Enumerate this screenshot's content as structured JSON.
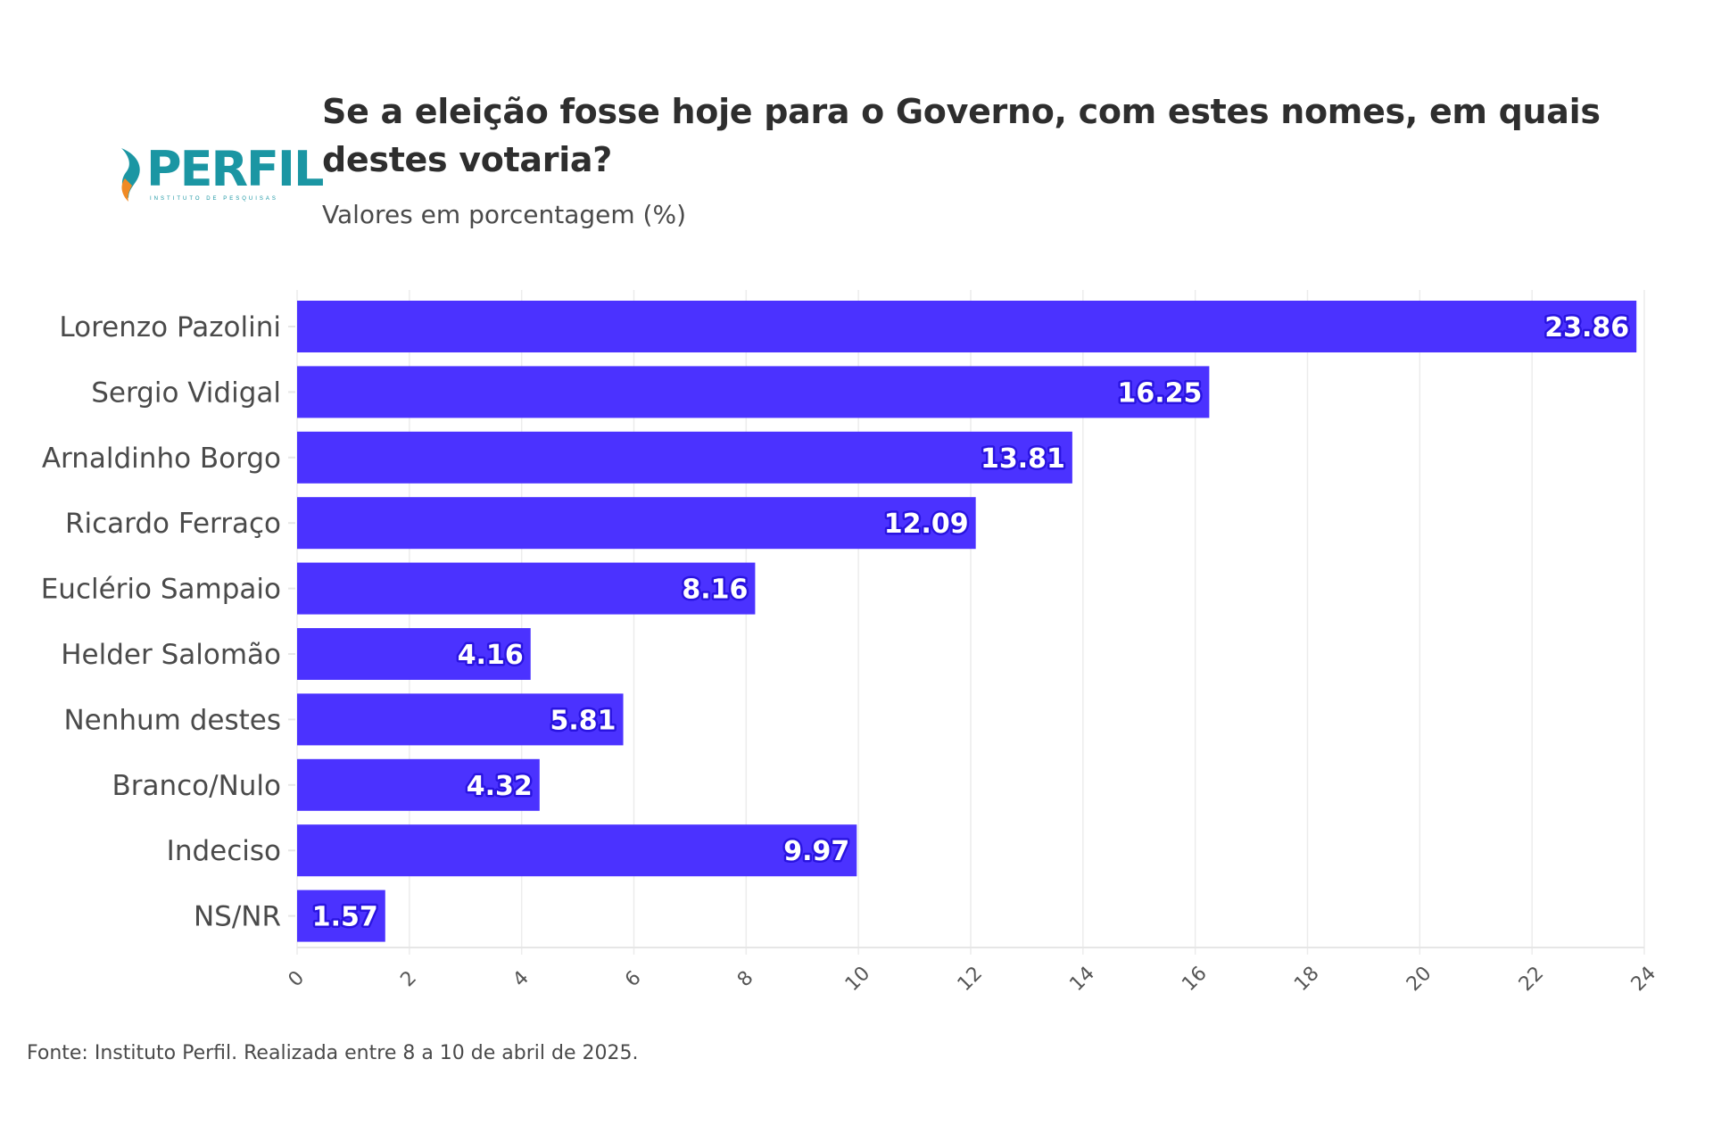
{
  "logo": {
    "name": "PERFIL",
    "tagline": "INSTITUTO DE PESQUISAS",
    "colors": {
      "primary": "#1b96a3",
      "accent": "#f08a24"
    }
  },
  "footer": "Fonte: Instituto Perfil. Realizada entre 8 a 10 de abril de 2025.",
  "chart_data": {
    "type": "bar",
    "orientation": "horizontal",
    "title": "Se a eleição fosse hoje para o Governo, com estes nomes, em quais destes votaria?",
    "subtitle": "Valores em porcentagem (%)",
    "xlabel": "",
    "ylabel": "",
    "categories": [
      "Lorenzo Pazolini",
      "Sergio Vidigal",
      "Arnaldinho Borgo",
      "Ricardo Ferraço",
      "Euclério Sampaio",
      "Helder Salomão",
      "Nenhum destes",
      "Branco/Nulo",
      "Indeciso",
      "NS/NR"
    ],
    "values": [
      23.86,
      16.25,
      13.81,
      12.09,
      8.16,
      4.16,
      5.81,
      4.32,
      9.97,
      1.57
    ],
    "value_labels": [
      "23.86",
      "16.25",
      "13.81",
      "12.09",
      "8.16",
      "4.16",
      "5.81",
      "4.32",
      "9.97",
      "1.57"
    ],
    "xlim": [
      0,
      24
    ],
    "xticks": [
      0,
      2,
      4,
      6,
      8,
      10,
      12,
      14,
      16,
      18,
      20,
      22,
      24
    ],
    "xtick_labels": [
      "0",
      "2",
      "4",
      "6",
      "8",
      "10",
      "12",
      "14",
      "16",
      "18",
      "20",
      "22",
      "24"
    ],
    "grid": true,
    "legend": "none",
    "bar_color": "#4b32ff"
  }
}
